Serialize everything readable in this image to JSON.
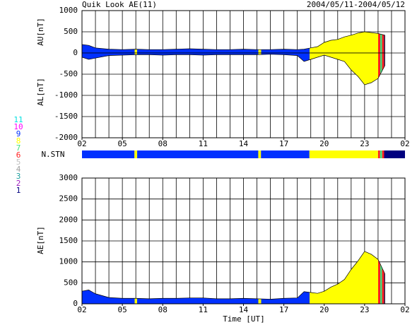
{
  "chart_data": [
    {
      "type": "band",
      "title": "Quik Look AE(11)",
      "subtitle": "2004/05/11-2004/05/12",
      "x": [
        0,
        0.5,
        1,
        2,
        3,
        4,
        5,
        6,
        7,
        8,
        9,
        10,
        11,
        12,
        13,
        14,
        15,
        16,
        16.5,
        17,
        17.5,
        18,
        18.5,
        19,
        19.5,
        20,
        20.5,
        21,
        21.5,
        22,
        22.5
      ],
      "series": [
        {
          "name": "AU[nT]",
          "values": [
            200,
            180,
            120,
            90,
            80,
            90,
            80,
            80,
            90,
            100,
            90,
            80,
            80,
            90,
            80,
            80,
            90,
            80,
            90,
            120,
            150,
            250,
            300,
            320,
            380,
            420,
            470,
            500,
            480,
            460,
            420
          ]
        },
        {
          "name": "AL[nT]",
          "values": [
            -100,
            -150,
            -120,
            -60,
            -50,
            -40,
            -40,
            -50,
            -40,
            -40,
            -50,
            -40,
            -40,
            -40,
            -40,
            -30,
            -40,
            -60,
            -200,
            -150,
            -100,
            -50,
            -100,
            -150,
            -200,
            -400,
            -550,
            -750,
            -700,
            -600,
            -300
          ]
        }
      ],
      "xlim": [
        0,
        24
      ],
      "xticks": [
        {
          "value": 0,
          "label": "02"
        },
        {
          "value": 3,
          "label": "05"
        },
        {
          "value": 6,
          "label": "08"
        },
        {
          "value": 9,
          "label": "11"
        },
        {
          "value": 12,
          "label": "14"
        },
        {
          "value": 15,
          "label": "17"
        },
        {
          "value": 18,
          "label": "20"
        },
        {
          "value": 21,
          "label": "23"
        },
        {
          "value": 24,
          "label": "02"
        }
      ],
      "xgrid_step": 1,
      "ylim": [
        -2000,
        1000
      ],
      "yticks": [
        -2000,
        -1500,
        -1000,
        -500,
        0,
        500,
        1000
      ],
      "grid": true,
      "station_strip": {
        "label": "N.STN",
        "segments": [
          {
            "start": 0,
            "end": 3.9,
            "n": 9
          },
          {
            "start": 3.9,
            "end": 4.1,
            "n": 8
          },
          {
            "start": 4.1,
            "end": 13.1,
            "n": 9
          },
          {
            "start": 13.1,
            "end": 13.3,
            "n": 8
          },
          {
            "start": 13.3,
            "end": 16.9,
            "n": 9
          },
          {
            "start": 16.9,
            "end": 22.0,
            "n": 8
          },
          {
            "start": 22.0,
            "end": 22.15,
            "n": 6
          },
          {
            "start": 22.15,
            "end": 22.3,
            "n": 7
          },
          {
            "start": 22.3,
            "end": 22.45,
            "n": 6
          },
          {
            "start": 22.45,
            "end": 24,
            "n": 1
          }
        ]
      },
      "station_legend": [
        {
          "n": 11,
          "color": "#00e0e0"
        },
        {
          "n": 10,
          "color": "#ff00ff"
        },
        {
          "n": 9,
          "color": "#0030ff"
        },
        {
          "n": 8,
          "color": "#ffff00"
        },
        {
          "n": 7,
          "color": "#40e080"
        },
        {
          "n": 6,
          "color": "#ff2020"
        },
        {
          "n": 5,
          "color": "#c0c0c0"
        },
        {
          "n": 4,
          "color": "#a0a0a0"
        },
        {
          "n": 3,
          "color": "#20a0a0"
        },
        {
          "n": 2,
          "color": "#a020c0"
        },
        {
          "n": 1,
          "color": "#00007f"
        }
      ]
    },
    {
      "type": "area",
      "xlabel": "Time [UT]",
      "x": [
        0,
        0.5,
        1,
        2,
        3,
        4,
        5,
        6,
        7,
        8,
        9,
        10,
        11,
        12,
        13,
        14,
        15,
        16,
        16.5,
        17,
        17.5,
        18,
        18.5,
        19,
        19.5,
        20,
        20.5,
        21,
        21.5,
        22,
        22.5
      ],
      "series": [
        {
          "name": "AE[nT]",
          "values": [
            300,
            330,
            240,
            150,
            130,
            130,
            120,
            130,
            130,
            140,
            140,
            120,
            120,
            130,
            120,
            110,
            130,
            140,
            290,
            270,
            250,
            300,
            400,
            470,
            580,
            820,
            1020,
            1250,
            1180,
            1060,
            720
          ]
        }
      ],
      "xlim": [
        0,
        24
      ],
      "xticks": [
        {
          "value": 0,
          "label": "02"
        },
        {
          "value": 3,
          "label": "05"
        },
        {
          "value": 6,
          "label": "08"
        },
        {
          "value": 9,
          "label": "11"
        },
        {
          "value": 12,
          "label": "14"
        },
        {
          "value": 15,
          "label": "17"
        },
        {
          "value": 18,
          "label": "20"
        },
        {
          "value": 21,
          "label": "23"
        },
        {
          "value": 24,
          "label": "02"
        }
      ],
      "xgrid_step": 1,
      "ylim": [
        0,
        3000
      ],
      "yticks": [
        0,
        500,
        1000,
        1500,
        2000,
        2500,
        3000
      ],
      "grid": true
    }
  ]
}
